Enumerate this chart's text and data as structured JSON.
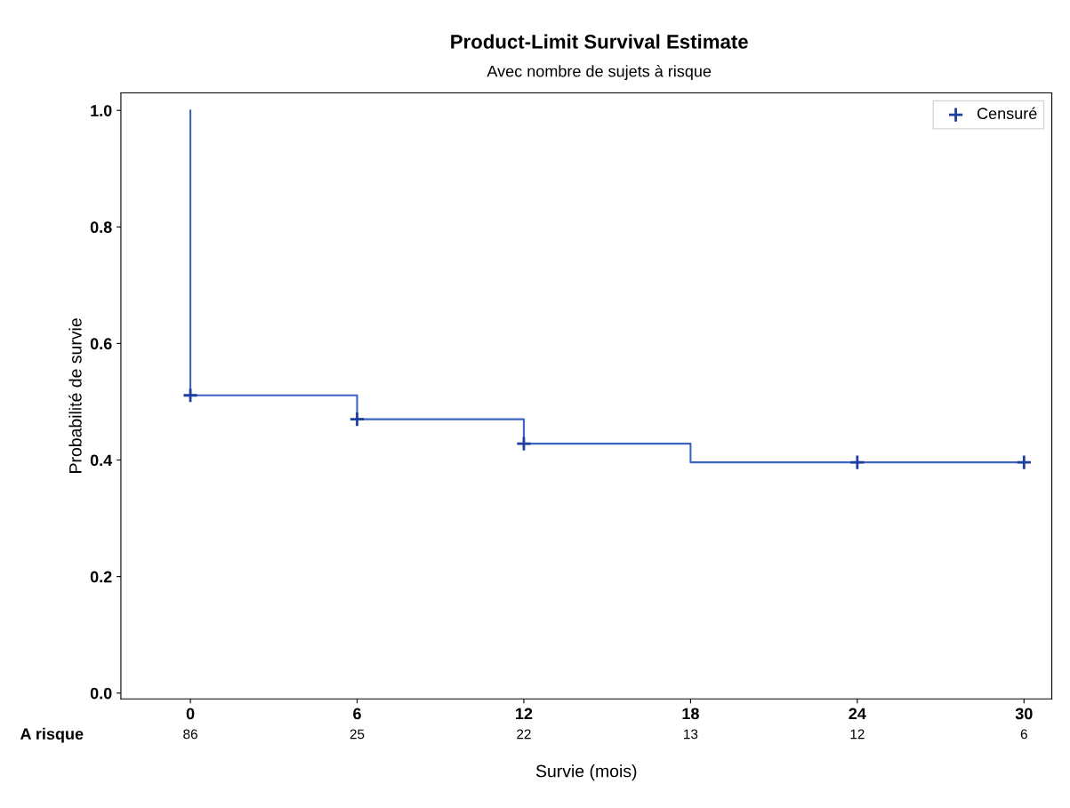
{
  "chart_data": {
    "type": "step",
    "title": "Product-Limit Survival Estimate",
    "subtitle": "Avec nombre de sujets à risque",
    "xlabel": "Survie (mois)",
    "ylabel": "Probabilité de survie",
    "series": [
      {
        "color": "#3d64c4",
        "x": [
          0,
          0,
          6,
          12,
          18,
          30
        ],
        "values": [
          1.0,
          0.511,
          0.47,
          0.428,
          0.396,
          0.396
        ]
      },
      {
        "type": "scatter",
        "name": "Censuré",
        "color": "#1f3f9f",
        "marker": "cross",
        "x": [
          0,
          6,
          12,
          24,
          30
        ],
        "values": [
          0.511,
          0.47,
          0.428,
          0.396,
          0.396
        ]
      }
    ],
    "xlim": [
      -2.5,
      31
    ],
    "xticks": [
      0,
      6,
      12,
      18,
      24,
      30
    ],
    "ylim": [
      -0.01,
      1.03
    ],
    "yticks": [
      {
        "value": 0,
        "label": "0.0"
      },
      0.2,
      0.4,
      0.6,
      0.8,
      {
        "value": 1,
        "label": "1.0"
      }
    ],
    "annotations": [
      "A risque",
      "86",
      "25",
      "22",
      "13",
      "12",
      "6"
    ],
    "grid": false,
    "legend": "top right"
  }
}
